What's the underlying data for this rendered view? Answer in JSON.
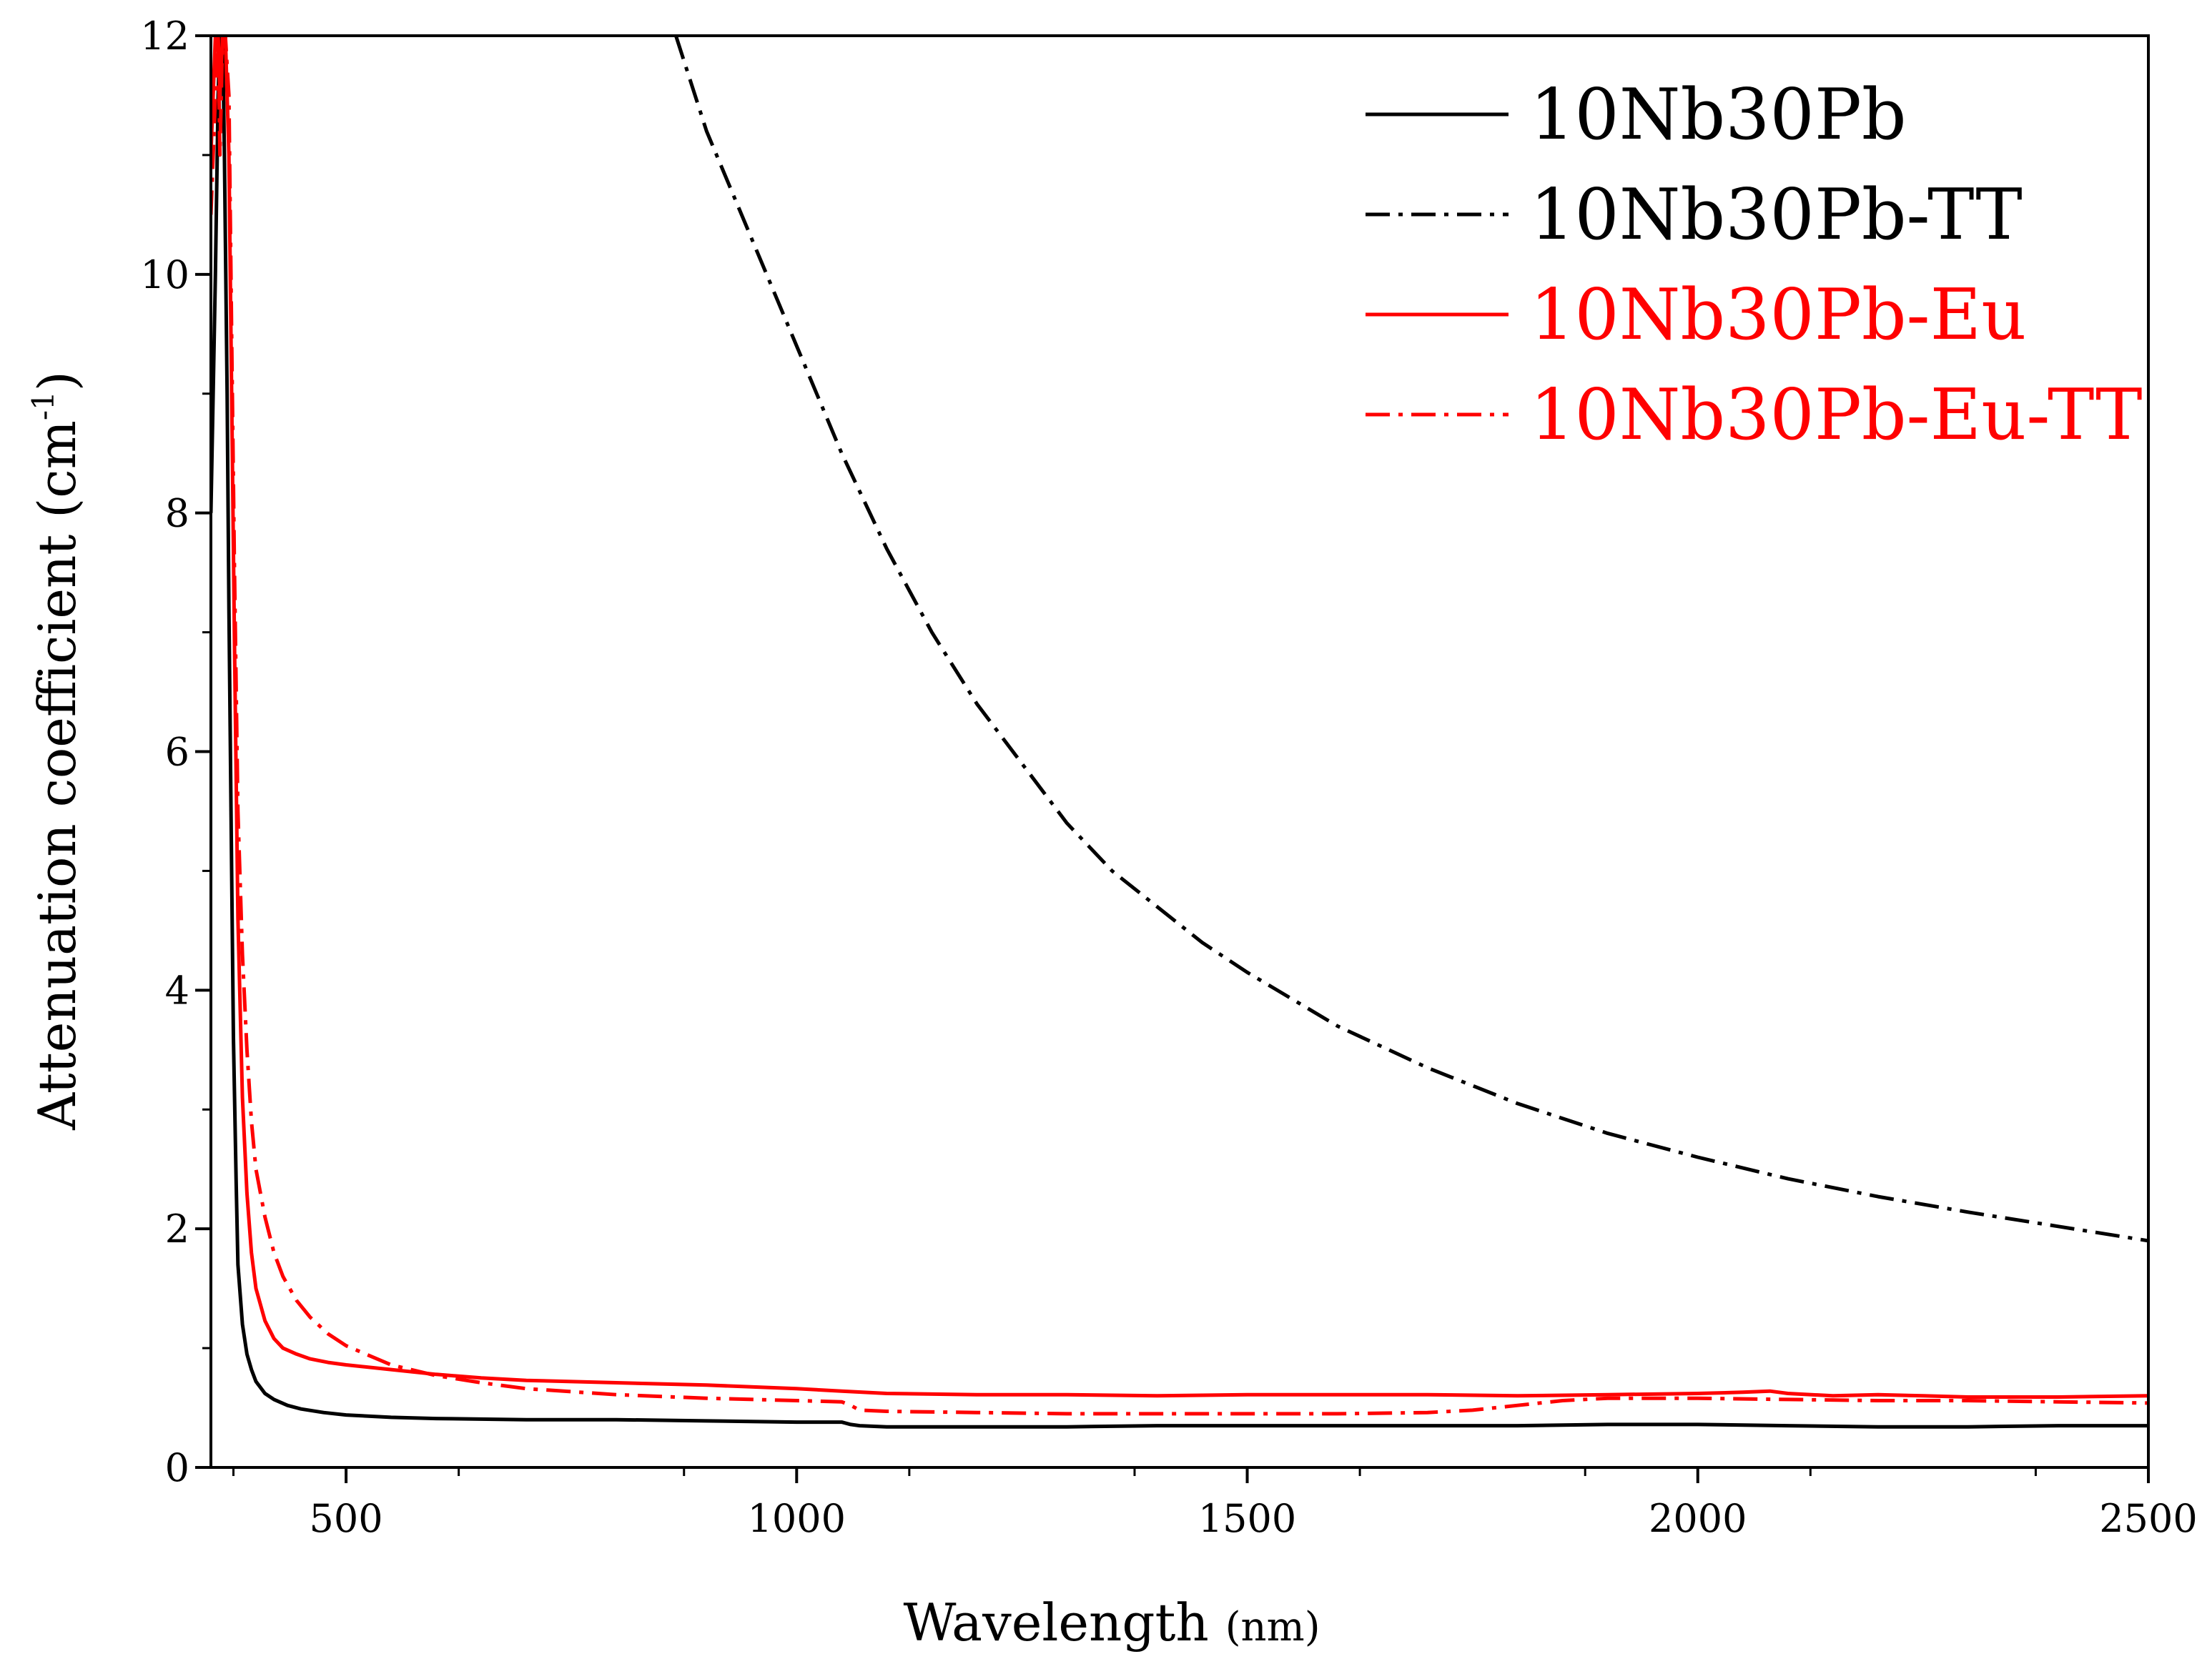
{
  "chart_data": {
    "type": "line",
    "title": "",
    "xlabel": "Wavelength",
    "xlabel_unit": "(nm)",
    "ylabel": "Attenuation coefficient (cm",
    "ylabel_exp": "-1",
    "ylabel_close": ")",
    "xlim": [
      350,
      2500
    ],
    "ylim": [
      0,
      12
    ],
    "x_ticks": [
      500,
      1000,
      1500,
      2000,
      2500
    ],
    "x_tick_labels": [
      "500",
      "1000",
      "1500",
      "2000",
      "2500"
    ],
    "y_ticks": [
      0,
      2,
      4,
      6,
      8,
      10,
      12
    ],
    "y_tick_labels": [
      "0",
      "2",
      "4",
      "6",
      "8",
      "10",
      "12"
    ],
    "grid": false,
    "legend_position": "top-right",
    "series": [
      {
        "name": "10Nb30Pb",
        "color": "#000000",
        "dash": "solid",
        "x": [
          350,
          355,
          358,
          360,
          363,
          365,
          368,
          370,
          373,
          375,
          378,
          380,
          385,
          390,
          395,
          400,
          410,
          420,
          435,
          450,
          475,
          500,
          550,
          600,
          700,
          800,
          900,
          1000,
          1050,
          1060,
          1070,
          1100,
          1200,
          1300,
          1400,
          1500,
          1600,
          1700,
          1800,
          1900,
          2000,
          2100,
          2200,
          2300,
          2400,
          2500
        ],
        "values": [
          8.0,
          10.0,
          11.5,
          12.0,
          12.0,
          11.0,
          9.0,
          7.2,
          5.0,
          3.6,
          2.4,
          1.7,
          1.2,
          0.95,
          0.82,
          0.72,
          0.62,
          0.57,
          0.52,
          0.49,
          0.46,
          0.44,
          0.42,
          0.41,
          0.4,
          0.4,
          0.39,
          0.38,
          0.38,
          0.36,
          0.35,
          0.34,
          0.34,
          0.34,
          0.35,
          0.35,
          0.35,
          0.35,
          0.35,
          0.36,
          0.36,
          0.35,
          0.34,
          0.34,
          0.35,
          0.35
        ]
      },
      {
        "name": "10Nb30Pb-TT",
        "color": "#000000",
        "dash": "dashdot",
        "x": [
          866,
          900,
          950,
          1000,
          1050,
          1100,
          1150,
          1200,
          1250,
          1300,
          1350,
          1400,
          1450,
          1500,
          1600,
          1700,
          1800,
          1900,
          2000,
          2100,
          2200,
          2300,
          2400,
          2500
        ],
        "values": [
          12.0,
          11.2,
          10.3,
          9.4,
          8.5,
          7.7,
          7.0,
          6.4,
          5.9,
          5.4,
          5.0,
          4.7,
          4.4,
          4.15,
          3.7,
          3.35,
          3.05,
          2.8,
          2.6,
          2.42,
          2.27,
          2.14,
          2.02,
          1.9
        ]
      },
      {
        "name": "10Nb30Pb-Eu",
        "color": "#ff0000",
        "dash": "solid",
        "x": [
          350,
          355,
          358,
          360,
          363,
          366,
          370,
          373,
          376,
          380,
          385,
          390,
          395,
          400,
          410,
          420,
          430,
          445,
          460,
          480,
          500,
          550,
          600,
          650,
          700,
          800,
          900,
          1000,
          1050,
          1100,
          1200,
          1300,
          1400,
          1500,
          1600,
          1700,
          1800,
          1900,
          2000,
          2050,
          2080,
          2100,
          2150,
          2200,
          2250,
          2300,
          2400,
          2500
        ],
        "values": [
          11.0,
          12.0,
          12.0,
          11.5,
          12.0,
          12.0,
          11.0,
          9.0,
          7.0,
          4.6,
          3.1,
          2.3,
          1.8,
          1.5,
          1.23,
          1.08,
          1.0,
          0.95,
          0.91,
          0.88,
          0.86,
          0.82,
          0.78,
          0.75,
          0.73,
          0.71,
          0.69,
          0.66,
          0.64,
          0.62,
          0.61,
          0.61,
          0.6,
          0.61,
          0.61,
          0.61,
          0.6,
          0.61,
          0.62,
          0.63,
          0.64,
          0.62,
          0.6,
          0.61,
          0.6,
          0.59,
          0.59,
          0.6
        ]
      },
      {
        "name": "10Nb30Pb-Eu-TT",
        "color": "#ff0000",
        "dash": "dashdot",
        "x": [
          350,
          355,
          358,
          360,
          363,
          366,
          370,
          373,
          376,
          380,
          385,
          390,
          395,
          400,
          410,
          420,
          430,
          445,
          460,
          480,
          500,
          550,
          600,
          650,
          700,
          800,
          900,
          1000,
          1050,
          1060,
          1070,
          1100,
          1200,
          1300,
          1400,
          1500,
          1600,
          1700,
          1750,
          1800,
          1850,
          1900,
          2000,
          2100,
          2200,
          2300,
          2400,
          2500
        ],
        "values": [
          10.5,
          11.5,
          12.0,
          11.0,
          12.0,
          12.0,
          11.5,
          9.5,
          7.6,
          5.5,
          4.3,
          3.5,
          2.9,
          2.5,
          2.1,
          1.8,
          1.6,
          1.4,
          1.26,
          1.12,
          1.02,
          0.86,
          0.77,
          0.71,
          0.66,
          0.61,
          0.58,
          0.56,
          0.55,
          0.52,
          0.48,
          0.47,
          0.46,
          0.45,
          0.45,
          0.45,
          0.45,
          0.46,
          0.48,
          0.52,
          0.56,
          0.58,
          0.58,
          0.57,
          0.56,
          0.56,
          0.55,
          0.54
        ]
      }
    ]
  }
}
